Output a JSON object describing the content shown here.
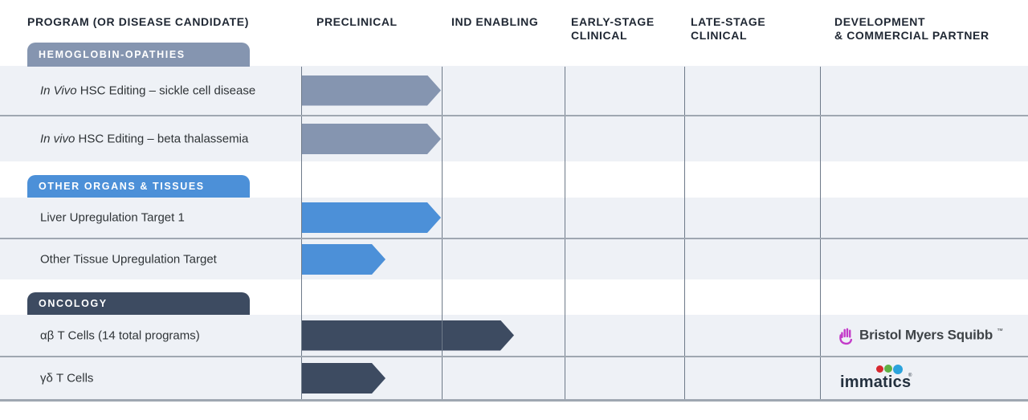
{
  "header": {
    "columns": [
      {
        "line1": "PROGRAM (OR DISEASE CANDIDATE)",
        "line2": ""
      },
      {
        "line1": "PRECLINICAL",
        "line2": ""
      },
      {
        "line1": "IND ENABLING",
        "line2": ""
      },
      {
        "line1": "EARLY-STAGE",
        "line2": "CLINICAL"
      },
      {
        "line1": "LATE-STAGE",
        "line2": "CLINICAL"
      },
      {
        "line1": "DEVELOPMENT",
        "line2": "& COMMERCIAL PARTNER"
      }
    ]
  },
  "sections": [
    {
      "label": "HEMOGLOBIN-OPATHIES",
      "color": "#8595B0",
      "rows": [
        {
          "name_italic": "In Vivo",
          "name_rest": " HSC Editing – sickle cell disease",
          "arrow": {
            "start": 375,
            "end": 549,
            "color": "#8595B0"
          },
          "partner": ""
        },
        {
          "name_italic": "In vivo",
          "name_rest": " HSC Editing – beta thalassemia",
          "arrow": {
            "start": 375,
            "end": 549,
            "color": "#8595B0"
          },
          "partner": ""
        }
      ]
    },
    {
      "label": "OTHER ORGANS & TISSUES",
      "color": "#4C90D8",
      "rows": [
        {
          "name_italic": "",
          "name_rest": "Liver Upregulation Target 1",
          "arrow": {
            "start": 375,
            "end": 549,
            "color": "#4C90D8"
          },
          "partner": ""
        },
        {
          "name_italic": "",
          "name_rest": "Other Tissue Upregulation Target",
          "arrow": {
            "start": 375,
            "end": 480,
            "color": "#4C90D8"
          },
          "partner": ""
        }
      ]
    },
    {
      "label": "ONCOLOGY",
      "color": "#3D4B61",
      "rows": [
        {
          "name_italic": "",
          "name_rest": "αβ T Cells (14 total programs)",
          "arrow": {
            "start": 375,
            "end": 640,
            "color": "#3D4B61"
          },
          "partner": "Bristol Myers Squibb"
        },
        {
          "name_italic": "",
          "name_rest": "γδ T Cells",
          "arrow": {
            "start": 375,
            "end": 480,
            "color": "#3D4B61"
          },
          "partner": "Immatics"
        }
      ]
    }
  ],
  "partners": {
    "bristol_myers_squibb": {
      "text": "Bristol Myers Squibb",
      "tm": "™",
      "hand_color": "#C33BC9",
      "text_color": "#3F4448"
    },
    "immatics": {
      "text": "immatics",
      "reg": "®",
      "text_color": "#24313F",
      "dot_red": "#D7282F",
      "dot_green": "#5FB044",
      "dot_blue": "#2BA3DC"
    }
  },
  "chart_data": {
    "type": "table",
    "title": "Pipeline programs by development stage",
    "stage_columns": [
      "Preclinical",
      "IND Enabling",
      "Early-Stage Clinical",
      "Late-Stage Clinical"
    ],
    "legend_position": "none",
    "rows": [
      {
        "section": "Hemoglobin-opathies",
        "program": "In Vivo HSC Editing – sickle cell disease",
        "stage_reached": "Preclinical",
        "stage_progress": 1.0,
        "partner": ""
      },
      {
        "section": "Hemoglobin-opathies",
        "program": "In vivo HSC Editing – beta thalassemia",
        "stage_reached": "Preclinical",
        "stage_progress": 1.0,
        "partner": ""
      },
      {
        "section": "Other Organs & Tissues",
        "program": "Liver Upregulation Target 1",
        "stage_reached": "Preclinical",
        "stage_progress": 1.0,
        "partner": ""
      },
      {
        "section": "Other Organs & Tissues",
        "program": "Other Tissue Upregulation Target",
        "stage_reached": "Preclinical",
        "stage_progress": 0.6,
        "partner": ""
      },
      {
        "section": "Oncology",
        "program": "αβ T Cells (14 total programs)",
        "stage_reached": "IND Enabling",
        "stage_progress": 1.6,
        "partner": "Bristol Myers Squibb"
      },
      {
        "section": "Oncology",
        "program": "γδ T Cells",
        "stage_reached": "Preclinical",
        "stage_progress": 0.6,
        "partner": "Immatics"
      }
    ]
  }
}
